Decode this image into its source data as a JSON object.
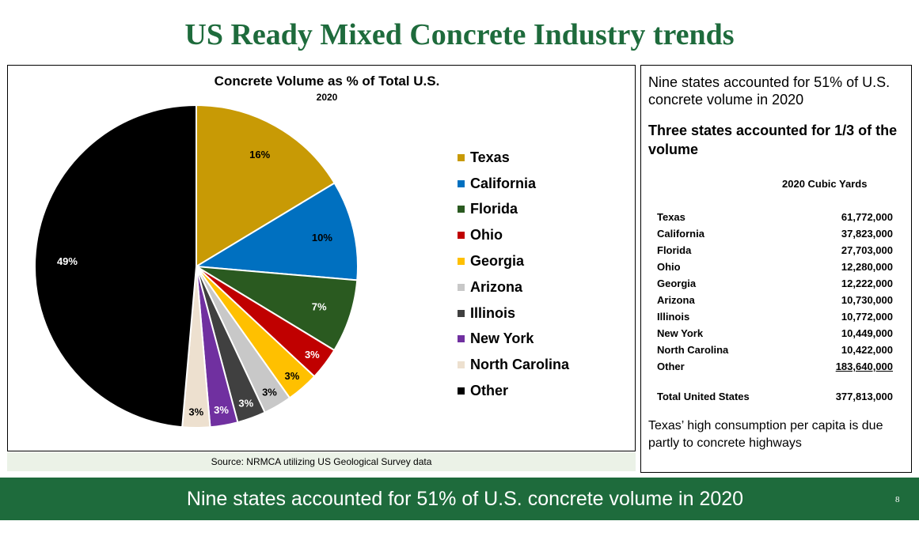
{
  "slide": {
    "title": "US Ready Mixed Concrete Industry trends",
    "source": "Source: NRMCA utilizing US Geological Survey data",
    "banner": "Nine states accounted for 51% of U.S. concrete volume in 2020",
    "page_number": "8"
  },
  "chart_data": {
    "type": "pie",
    "title": "Concrete Volume as % of Total U.S.",
    "subtitle": "2020",
    "legend_position": "right",
    "slices": [
      {
        "name": "Texas",
        "value": 61772000,
        "label": "16%",
        "color": "#c89a05",
        "label_color": "#000000"
      },
      {
        "name": "California",
        "value": 37823000,
        "label": "10%",
        "color": "#0070c0",
        "label_color": "#000000"
      },
      {
        "name": "Florida",
        "value": 27703000,
        "label": "7%",
        "color": "#2a5a20",
        "label_color": "#ffffff"
      },
      {
        "name": "Ohio",
        "value": 12280000,
        "label": "3%",
        "color": "#c00000",
        "label_color": "#ffffff"
      },
      {
        "name": "Georgia",
        "value": 12222000,
        "label": "3%",
        "color": "#ffc000",
        "label_color": "#000000"
      },
      {
        "name": "Arizona",
        "value": 10730000,
        "label": "3%",
        "color": "#c8c8c8",
        "label_color": "#000000"
      },
      {
        "name": "Illinois",
        "value": 10772000,
        "label": "3%",
        "color": "#404040",
        "label_color": "#ffffff"
      },
      {
        "name": "New York",
        "value": 10449000,
        "label": "3%",
        "color": "#7030a0",
        "label_color": "#ffffff"
      },
      {
        "name": "North Carolina",
        "value": 10422000,
        "label": "3%",
        "color": "#ede0cf",
        "label_color": "#000000"
      },
      {
        "name": "Other",
        "value": 183640000,
        "label": "49%",
        "color": "#000000",
        "label_color": "#ffffff"
      }
    ]
  },
  "side_panel": {
    "intro": "Nine states accounted for 51% of U.S. concrete volume in 2020",
    "bold_text": "Three states accounted for 1/3 of the volume",
    "table_header": "2020 Cubic Yards",
    "rows": [
      {
        "state": "Texas",
        "value": "61,772,000"
      },
      {
        "state": "California",
        "value": "37,823,000"
      },
      {
        "state": "Florida",
        "value": "27,703,000"
      },
      {
        "state": "Ohio",
        "value": "12,280,000"
      },
      {
        "state": "Georgia",
        "value": "12,222,000"
      },
      {
        "state": "Arizona",
        "value": "10,730,000"
      },
      {
        "state": "Illinois",
        "value": "10,772,000"
      },
      {
        "state": "New York",
        "value": "10,449,000"
      },
      {
        "state": "North Carolina",
        "value": "10,422,000"
      },
      {
        "state": "Other",
        "value": "183,640,000"
      }
    ],
    "total_label": "Total United States",
    "total_value": "377,813,000",
    "footer": "Texas’ high consumption per capita is due partly to concrete highways"
  }
}
